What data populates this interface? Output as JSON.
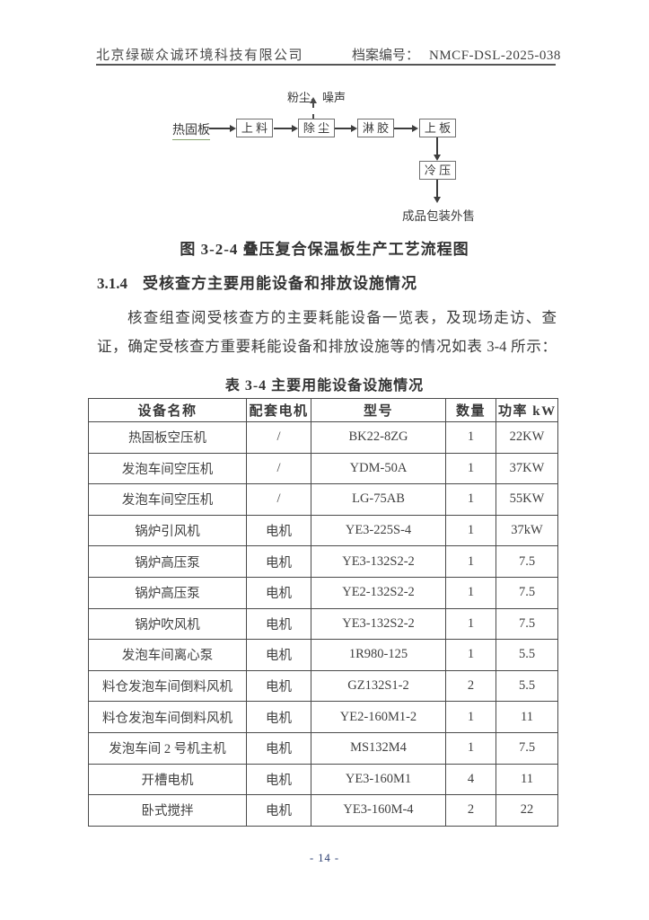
{
  "header": {
    "company": "北京绿碳众诚环境科技有限公司",
    "doc_label": "档案编号：",
    "doc_number": "NMCF-DSL-2025-038"
  },
  "flowchart": {
    "input_label": "热固板",
    "emission_label": "粉尘、噪声",
    "boxes": [
      "上 料",
      "除 尘",
      "淋 胶",
      "上 板",
      "冷 压"
    ],
    "output_label": "成品包装外售"
  },
  "figure_caption": "图 3-2-4 叠压复合保温板生产工艺流程图",
  "section": {
    "number": "3.1.4",
    "title": "受核查方主要用能设备和排放设施情况"
  },
  "paragraph": {
    "line1": "核查组查阅受核查方的主要耗能设备一览表，及现场走访、查",
    "line2": "证，确定受核查方重要耗能设备和排放设施等的情况如表 3-4 所示："
  },
  "table": {
    "title": "表 3-4  主要用能设备设施情况",
    "headers": [
      "设备名称",
      "配套电机",
      "型号",
      "数量",
      "功率 kW"
    ],
    "rows": [
      [
        "热固板空压机",
        "/",
        "BK22-8ZG",
        "1",
        "22KW"
      ],
      [
        "发泡车间空压机",
        "/",
        "YDM-50A",
        "1",
        "37KW"
      ],
      [
        "发泡车间空压机",
        "/",
        "LG-75AB",
        "1",
        "55KW"
      ],
      [
        "锅炉引风机",
        "电机",
        "YE3-225S-4",
        "1",
        "37kW"
      ],
      [
        "锅炉高压泵",
        "电机",
        "YE3-132S2-2",
        "1",
        "7.5"
      ],
      [
        "锅炉高压泵",
        "电机",
        "YE2-132S2-2",
        "1",
        "7.5"
      ],
      [
        "锅炉吹风机",
        "电机",
        "YE3-132S2-2",
        "1",
        "7.5"
      ],
      [
        "发泡车间离心泵",
        "电机",
        "1R980-125",
        "1",
        "5.5"
      ],
      [
        "料仓发泡车间倒料风机",
        "电机",
        "GZ132S1-2",
        "2",
        "5.5"
      ],
      [
        "料仓发泡车间倒料风机",
        "电机",
        "YE2-160M1-2",
        "1",
        "11"
      ],
      [
        "发泡车间 2 号机主机",
        "电机",
        "MS132M4",
        "1",
        "7.5"
      ],
      [
        "开槽电机",
        "电机",
        "YE3-160M1",
        "4",
        "11"
      ],
      [
        "卧式搅拌",
        "电机",
        "YE3-160M-4",
        "2",
        "22"
      ]
    ]
  },
  "footer": {
    "page_number": "- 14 -"
  }
}
